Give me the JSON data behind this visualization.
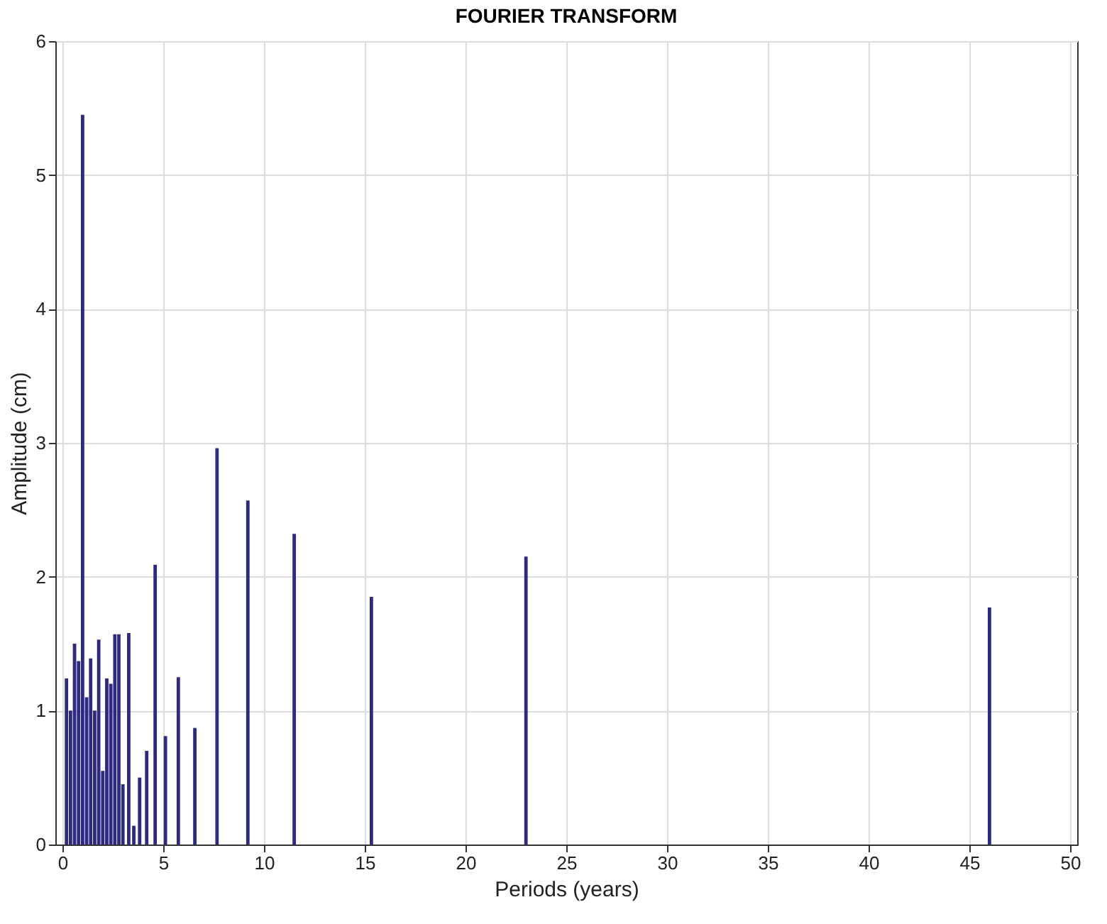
{
  "chart_data": {
    "type": "bar",
    "title": "FOURIER TRANSFORM",
    "xlabel": "Periods (years)",
    "ylabel": "Amplitude (cm)",
    "x": [
      46,
      23,
      15.33,
      11.5,
      9.2,
      7.67,
      6.57,
      5.75,
      5.11,
      4.6,
      4.18,
      3.83,
      3.54,
      3.29,
      3.0,
      2.8,
      2.6,
      2.4,
      2.2,
      2.0,
      1.8,
      1.6,
      1.4,
      1.2,
      1.0,
      0.8,
      0.6,
      0.4,
      0.2
    ],
    "values": [
      1.77,
      2.15,
      1.85,
      2.32,
      2.57,
      2.96,
      0.87,
      1.25,
      0.81,
      2.09,
      0.7,
      0.5,
      0.14,
      1.58,
      0.45,
      1.57,
      1.57,
      1.2,
      1.24,
      0.55,
      1.53,
      1.0,
      1.39,
      1.1,
      5.45,
      1.37,
      1.5,
      1.0,
      1.24
    ],
    "color": "#2e2a82",
    "xlim": [
      0,
      50
    ],
    "xticks": [
      0,
      5,
      10,
      15,
      20,
      25,
      30,
      35,
      40,
      45,
      50
    ],
    "ylim": [
      0,
      6
    ],
    "yticks": [
      0,
      1,
      2,
      3,
      4,
      5,
      6
    ],
    "grid": true
  }
}
